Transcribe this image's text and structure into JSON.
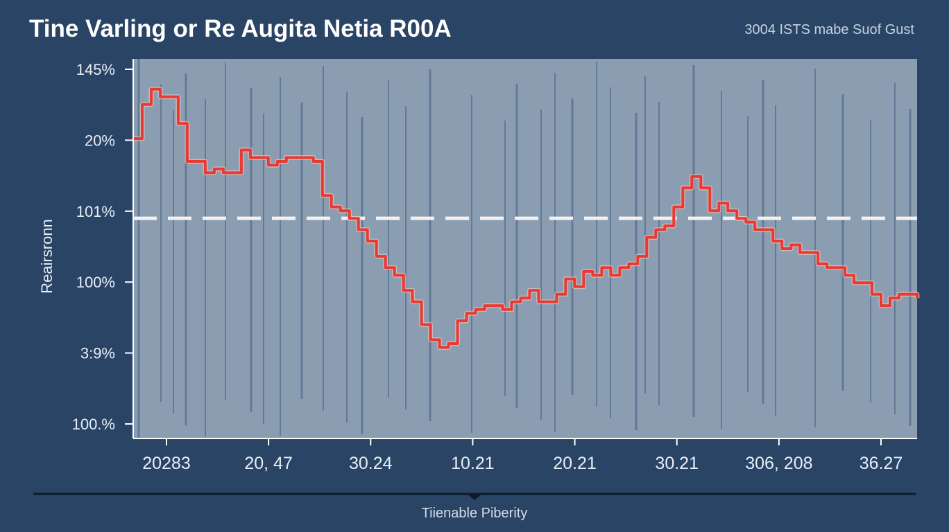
{
  "chart_data": {
    "type": "line",
    "title": "Tine Varling or Re Augita Netia R00A",
    "subtitle": "3004 ISTS mabe Suof Gust",
    "ylabel": "Reairsronn",
    "xlabel": "Tiienable Piberity",
    "y_tick_labels": [
      "145%",
      "20%",
      "101%",
      "100%",
      "3:9%",
      "100.%"
    ],
    "x_tick_labels": [
      "20283",
      "20, 47",
      "30.24",
      "10.21",
      "20.21",
      "30.21",
      "306, 208",
      "36.27"
    ],
    "reference_line_value": 0.58,
    "y_range": [
      0,
      1
    ],
    "grid": false,
    "series": [
      {
        "color": "#e83a32",
        "values": [
          0.79,
          0.88,
          0.92,
          0.9,
          0.9,
          0.83,
          0.73,
          0.73,
          0.7,
          0.71,
          0.7,
          0.7,
          0.76,
          0.74,
          0.74,
          0.72,
          0.73,
          0.74,
          0.74,
          0.74,
          0.73,
          0.64,
          0.61,
          0.6,
          0.58,
          0.55,
          0.52,
          0.48,
          0.45,
          0.43,
          0.39,
          0.36,
          0.3,
          0.26,
          0.24,
          0.25,
          0.31,
          0.33,
          0.34,
          0.35,
          0.35,
          0.34,
          0.36,
          0.37,
          0.39,
          0.36,
          0.36,
          0.38,
          0.42,
          0.4,
          0.44,
          0.43,
          0.45,
          0.43,
          0.45,
          0.46,
          0.48,
          0.53,
          0.55,
          0.56,
          0.61,
          0.66,
          0.69,
          0.66,
          0.6,
          0.62,
          0.6,
          0.58,
          0.57,
          0.55,
          0.55,
          0.52,
          0.5,
          0.51,
          0.49,
          0.49,
          0.46,
          0.45,
          0.45,
          0.43,
          0.41,
          0.41,
          0.38,
          0.35,
          0.37,
          0.38,
          0.38,
          0.37
        ]
      }
    ]
  },
  "colors": {
    "background": "#2a4466",
    "plot_area": "#8b9db1",
    "series_line": "#e83a32",
    "reference_line": "#f2f2f2",
    "vertical_lines": "#5d7394"
  }
}
